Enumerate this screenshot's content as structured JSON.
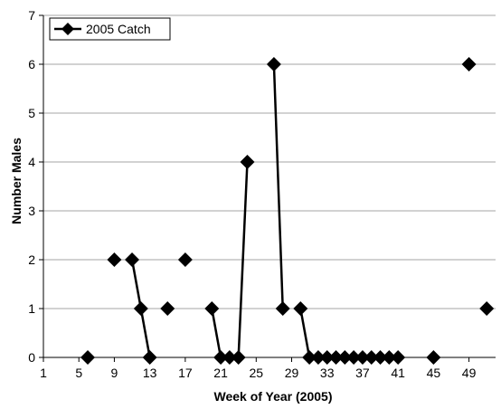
{
  "chart_data": {
    "type": "line",
    "title": "",
    "xlabel": "Week of Year (2005)",
    "ylabel": "Number Males",
    "xlim": [
      1,
      52
    ],
    "ylim": [
      0,
      7
    ],
    "x_ticks": [
      1,
      5,
      9,
      13,
      17,
      21,
      25,
      29,
      33,
      37,
      41,
      45,
      49
    ],
    "y_ticks": [
      0,
      1,
      2,
      3,
      4,
      5,
      6,
      7
    ],
    "grid": "horizontal",
    "legend_position": "top-left",
    "series": [
      {
        "name": "2005 Catch",
        "color": "#000000",
        "marker": "diamond",
        "points": [
          {
            "x": 6,
            "y": 0
          },
          {
            "x": 9,
            "y": 2
          },
          {
            "x": 11,
            "y": 2
          },
          {
            "x": 12,
            "y": 1
          },
          {
            "x": 13,
            "y": 0
          },
          {
            "x": 15,
            "y": 1
          },
          {
            "x": 17,
            "y": 2
          },
          {
            "x": 20,
            "y": 1
          },
          {
            "x": 21,
            "y": 0
          },
          {
            "x": 22,
            "y": 0
          },
          {
            "x": 23,
            "y": 0
          },
          {
            "x": 24,
            "y": 4
          },
          {
            "x": 27,
            "y": 6
          },
          {
            "x": 28,
            "y": 1
          },
          {
            "x": 30,
            "y": 1
          },
          {
            "x": 31,
            "y": 0
          },
          {
            "x": 32,
            "y": 0
          },
          {
            "x": 33,
            "y": 0
          },
          {
            "x": 34,
            "y": 0
          },
          {
            "x": 35,
            "y": 0
          },
          {
            "x": 36,
            "y": 0
          },
          {
            "x": 37,
            "y": 0
          },
          {
            "x": 38,
            "y": 0
          },
          {
            "x": 39,
            "y": 0
          },
          {
            "x": 40,
            "y": 0
          },
          {
            "x": 41,
            "y": 0
          },
          {
            "x": 45,
            "y": 0
          },
          {
            "x": 49,
            "y": 6
          },
          {
            "x": 51,
            "y": 1
          }
        ]
      }
    ]
  }
}
